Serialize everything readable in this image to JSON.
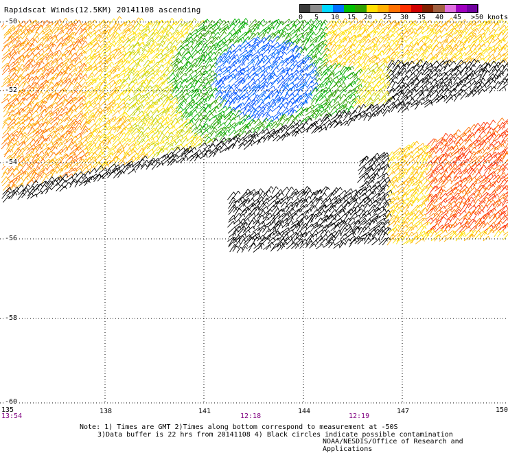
{
  "title": "Rapidscat Winds(12.5KM) 20141108 ascending",
  "colorbar": {
    "labels": [
      "0",
      "5",
      "10",
      "15",
      "20",
      "25",
      "30",
      "35",
      "40",
      "45",
      ">50"
    ],
    "unit": "knots",
    "colors": [
      "#3a3a3a",
      "#8c8c8c",
      "#00d8ff",
      "#0070ff",
      "#00c000",
      "#30a000",
      "#ffe000",
      "#ffb000",
      "#ff7000",
      "#ff3000",
      "#d00000",
      "#802000",
      "#a06040",
      "#e070e0",
      "#a000c0",
      "#7000a0"
    ]
  },
  "lat_labels": [
    "-50",
    "-52",
    "-54",
    "-56",
    "-58",
    "-60"
  ],
  "lon_labels": [
    "135",
    "138",
    "141",
    "144",
    "147",
    "150"
  ],
  "time_labels": [
    "13:54",
    "12:18",
    "12:19"
  ],
  "note_line1": "Note: 1) Times are GMT 2)Times along bottom correspond to measurement at -50S",
  "note_line2": "3)Data buffer is 22 hrs from 20141108 4) Black circles indicate possible contamination",
  "credit": "NOAA/NESDIS/Office of Research and Applications"
}
